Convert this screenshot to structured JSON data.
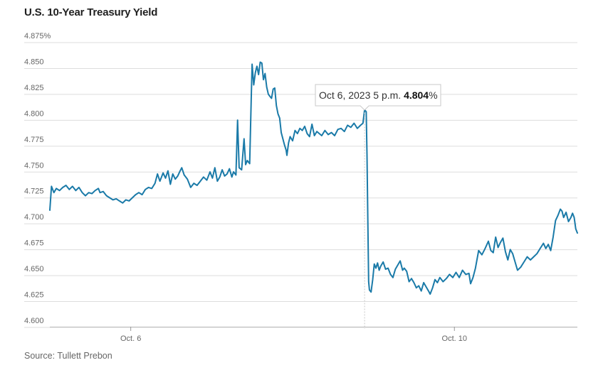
{
  "title": "U.S. 10-Year Treasury Yield",
  "source": "Source: Tullett Prebon",
  "colors": {
    "line": "#1a7aa8",
    "grid": "#dddddd",
    "axis": "#999999"
  },
  "tooltip": {
    "date_text": "Oct 6, 2023 5 p.m.",
    "value_text": "4.804",
    "unit": "%"
  },
  "chart_data": {
    "type": "line",
    "title": "U.S. 10-Year Treasury Yield",
    "ylabel": "",
    "xlabel": "",
    "ylim": [
      4.6,
      4.875
    ],
    "yticks": [
      "4.875%",
      "4.850",
      "4.825",
      "4.800",
      "4.775",
      "4.750",
      "4.725",
      "4.700",
      "4.675",
      "4.650",
      "4.625",
      "4.600"
    ],
    "xticks": [
      {
        "label": "Oct. 6",
        "x": 1.0
      },
      {
        "label": "Oct. 10",
        "x": 5.0
      }
    ],
    "grid": true,
    "x_unit": "days since start of Oct. 5 session",
    "series": [
      {
        "name": "",
        "points": [
          [
            0.0,
            4.707
          ],
          [
            0.02,
            4.73
          ],
          [
            0.05,
            4.724
          ],
          [
            0.08,
            4.728
          ],
          [
            0.12,
            4.726
          ],
          [
            0.16,
            4.729
          ],
          [
            0.2,
            4.731
          ],
          [
            0.24,
            4.727
          ],
          [
            0.28,
            4.73
          ],
          [
            0.32,
            4.726
          ],
          [
            0.36,
            4.729
          ],
          [
            0.4,
            4.724
          ],
          [
            0.44,
            4.721
          ],
          [
            0.48,
            4.724
          ],
          [
            0.52,
            4.723
          ],
          [
            0.56,
            4.726
          ],
          [
            0.6,
            4.728
          ],
          [
            0.62,
            4.724
          ],
          [
            0.66,
            4.725
          ],
          [
            0.7,
            4.721
          ],
          [
            0.74,
            4.719
          ],
          [
            0.78,
            4.717
          ],
          [
            0.82,
            4.718
          ],
          [
            0.86,
            4.716
          ],
          [
            0.9,
            4.714
          ],
          [
            0.94,
            4.717
          ],
          [
            0.98,
            4.716
          ],
          [
            1.02,
            4.719
          ],
          [
            1.06,
            4.722
          ],
          [
            1.1,
            4.724
          ],
          [
            1.14,
            4.722
          ],
          [
            1.18,
            4.727
          ],
          [
            1.22,
            4.729
          ],
          [
            1.26,
            4.728
          ],
          [
            1.3,
            4.733
          ],
          [
            1.33,
            4.742
          ],
          [
            1.36,
            4.735
          ],
          [
            1.4,
            4.743
          ],
          [
            1.43,
            4.738
          ],
          [
            1.46,
            4.745
          ],
          [
            1.49,
            4.732
          ],
          [
            1.52,
            4.742
          ],
          [
            1.55,
            4.737
          ],
          [
            1.58,
            4.74
          ],
          [
            1.61,
            4.745
          ],
          [
            1.63,
            4.748
          ],
          [
            1.66,
            4.741
          ],
          [
            1.7,
            4.737
          ],
          [
            1.74,
            4.729
          ],
          [
            1.78,
            4.733
          ],
          [
            1.82,
            4.731
          ],
          [
            1.86,
            4.735
          ],
          [
            1.9,
            4.739
          ],
          [
            1.94,
            4.736
          ],
          [
            1.98,
            4.744
          ],
          [
            2.01,
            4.738
          ],
          [
            2.04,
            4.748
          ],
          [
            2.07,
            4.735
          ],
          [
            2.1,
            4.739
          ],
          [
            2.13,
            4.746
          ],
          [
            2.16,
            4.74
          ],
          [
            2.19,
            4.742
          ],
          [
            2.22,
            4.747
          ],
          [
            2.25,
            4.739
          ],
          [
            2.27,
            4.744
          ],
          [
            2.3,
            4.741
          ],
          [
            2.32,
            4.794
          ],
          [
            2.34,
            4.748
          ],
          [
            2.37,
            4.746
          ],
          [
            2.4,
            4.776
          ],
          [
            2.42,
            4.751
          ],
          [
            2.44,
            4.755
          ],
          [
            2.47,
            4.752
          ],
          [
            2.49,
            4.818
          ],
          [
            2.5,
            4.848
          ],
          [
            2.52,
            4.828
          ],
          [
            2.54,
            4.84
          ],
          [
            2.56,
            4.846
          ],
          [
            2.58,
            4.838
          ],
          [
            2.6,
            4.85
          ],
          [
            2.62,
            4.849
          ],
          [
            2.64,
            4.833
          ],
          [
            2.66,
            4.839
          ],
          [
            2.68,
            4.826
          ],
          [
            2.7,
            4.819
          ],
          [
            2.72,
            4.817
          ],
          [
            2.74,
            4.815
          ],
          [
            2.76,
            4.824
          ],
          [
            2.78,
            4.825
          ],
          [
            2.8,
            4.808
          ],
          [
            2.82,
            4.8
          ],
          [
            2.84,
            4.796
          ],
          [
            2.86,
            4.782
          ],
          [
            2.88,
            4.776
          ],
          [
            2.9,
            4.77
          ],
          [
            2.92,
            4.765
          ],
          [
            2.93,
            4.76
          ],
          [
            2.95,
            4.772
          ],
          [
            2.97,
            4.778
          ],
          [
            3.0,
            4.774
          ],
          [
            3.03,
            4.784
          ],
          [
            3.06,
            4.781
          ],
          [
            3.09,
            4.786
          ],
          [
            3.12,
            4.784
          ],
          [
            3.15,
            4.788
          ],
          [
            3.18,
            4.781
          ],
          [
            3.21,
            4.778
          ],
          [
            3.24,
            4.79
          ],
          [
            3.27,
            4.779
          ],
          [
            3.3,
            4.783
          ],
          [
            3.33,
            4.781
          ],
          [
            3.36,
            4.779
          ],
          [
            3.4,
            4.784
          ],
          [
            3.44,
            4.78
          ],
          [
            3.48,
            4.782
          ],
          [
            3.52,
            4.779
          ],
          [
            3.56,
            4.785
          ],
          [
            3.6,
            4.786
          ],
          [
            3.64,
            4.783
          ],
          [
            3.68,
            4.789
          ],
          [
            3.72,
            4.787
          ],
          [
            3.76,
            4.791
          ],
          [
            3.8,
            4.786
          ],
          [
            3.84,
            4.789
          ],
          [
            3.87,
            4.791
          ],
          [
            3.89,
            4.804
          ],
          [
            3.91,
            4.802
          ],
          [
            3.92,
            4.76
          ],
          [
            3.93,
            4.7
          ],
          [
            3.94,
            4.638
          ],
          [
            3.95,
            4.63
          ],
          [
            3.97,
            4.628
          ],
          [
            3.99,
            4.64
          ],
          [
            4.01,
            4.655
          ],
          [
            4.03,
            4.651
          ],
          [
            4.05,
            4.656
          ],
          [
            4.07,
            4.649
          ],
          [
            4.09,
            4.653
          ],
          [
            4.12,
            4.657
          ],
          [
            4.15,
            4.65
          ],
          [
            4.18,
            4.651
          ],
          [
            4.21,
            4.645
          ],
          [
            4.24,
            4.642
          ],
          [
            4.27,
            4.65
          ],
          [
            4.3,
            4.654
          ],
          [
            4.33,
            4.658
          ],
          [
            4.36,
            4.649
          ],
          [
            4.38,
            4.651
          ],
          [
            4.41,
            4.648
          ],
          [
            4.44,
            4.638
          ],
          [
            4.47,
            4.641
          ],
          [
            4.5,
            4.637
          ],
          [
            4.53,
            4.632
          ],
          [
            4.56,
            4.634
          ],
          [
            4.59,
            4.629
          ],
          [
            4.62,
            4.637
          ],
          [
            4.65,
            4.633
          ],
          [
            4.68,
            4.629
          ],
          [
            4.7,
            4.626
          ],
          [
            4.73,
            4.632
          ],
          [
            4.76,
            4.64
          ],
          [
            4.79,
            4.637
          ],
          [
            4.82,
            4.642
          ],
          [
            4.86,
            4.638
          ],
          [
            4.9,
            4.641
          ],
          [
            4.94,
            4.645
          ],
          [
            4.98,
            4.642
          ],
          [
            5.02,
            4.647
          ],
          [
            5.06,
            4.642
          ],
          [
            5.1,
            4.649
          ],
          [
            5.14,
            4.645
          ],
          [
            5.18,
            4.646
          ],
          [
            5.2,
            4.636
          ],
          [
            5.23,
            4.642
          ],
          [
            5.26,
            4.651
          ],
          [
            5.3,
            4.668
          ],
          [
            5.34,
            4.664
          ],
          [
            5.38,
            4.67
          ],
          [
            5.42,
            4.677
          ],
          [
            5.45,
            4.668
          ],
          [
            5.48,
            4.666
          ],
          [
            5.51,
            4.681
          ],
          [
            5.54,
            4.671
          ],
          [
            5.57,
            4.676
          ],
          [
            5.6,
            4.68
          ],
          [
            5.63,
            4.667
          ],
          [
            5.66,
            4.659
          ],
          [
            5.69,
            4.669
          ],
          [
            5.72,
            4.665
          ],
          [
            5.75,
            4.657
          ],
          [
            5.78,
            4.649
          ],
          [
            5.82,
            4.652
          ],
          [
            5.86,
            4.657
          ],
          [
            5.9,
            4.662
          ],
          [
            5.94,
            4.659
          ],
          [
            5.98,
            4.662
          ],
          [
            6.02,
            4.665
          ],
          [
            6.06,
            4.67
          ],
          [
            6.1,
            4.675
          ],
          [
            6.13,
            4.67
          ],
          [
            6.16,
            4.674
          ],
          [
            6.19,
            4.668
          ],
          [
            6.22,
            4.681
          ],
          [
            6.25,
            4.697
          ],
          [
            6.28,
            4.702
          ],
          [
            6.31,
            4.708
          ],
          [
            6.33,
            4.706
          ],
          [
            6.35,
            4.7
          ],
          [
            6.38,
            4.705
          ],
          [
            6.41,
            4.696
          ],
          [
            6.44,
            4.7
          ],
          [
            6.46,
            4.704
          ],
          [
            6.48,
            4.7
          ],
          [
            6.5,
            4.689
          ],
          [
            6.52,
            4.685
          ]
        ]
      }
    ],
    "annotations": [
      {
        "x": 3.89,
        "y": 4.804,
        "text": "Oct 6, 2023 5 p.m. 4.804%"
      }
    ]
  }
}
